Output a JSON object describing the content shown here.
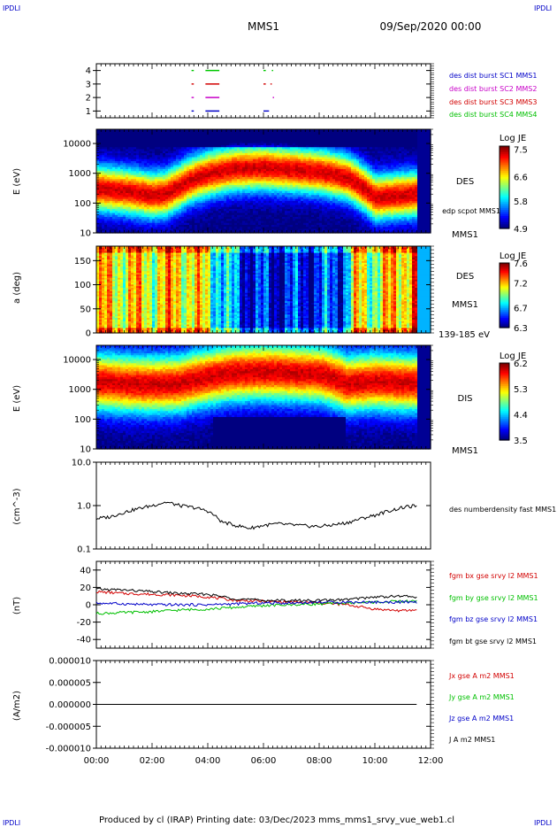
{
  "header": {
    "corner_tl": "IPDLI",
    "corner_tr": "IPDLI",
    "corner_bl": "IPDLI",
    "corner_br": "IPDLI",
    "title": "MMS1",
    "date": "09/Sep/2020 00:00"
  },
  "footer": {
    "text": "Produced by cl (IRAP)   Printing date: 03/Dec/2023   mms_mms1_srvy_vue_web1.cl"
  },
  "colors": {
    "mms1": "#0000c8",
    "mms2": "#c800c8",
    "mms3": "#d20000",
    "mms4": "#00c800",
    "bx": "#d20000",
    "by": "#00c000",
    "bz": "#0000c8",
    "bt": "#000000"
  },
  "chart_data": [
    {
      "type": "line",
      "id": "burst",
      "xlim": [
        "00:00",
        "12:00"
      ],
      "ylim": [
        0.5,
        4.5
      ],
      "yticks": [
        "1",
        "2",
        "3",
        "4"
      ],
      "series": [
        {
          "name": "des dist burst SC1 MMS1",
          "y": 1,
          "intervals": [
            [
              "03:25",
              "03:30"
            ],
            [
              "03:55",
              "04:25"
            ],
            [
              "06:00",
              "06:12"
            ]
          ]
        },
        {
          "name": "des dist burst SC2 MMS2",
          "y": 2,
          "intervals": [
            [
              "03:25",
              "03:30"
            ],
            [
              "03:55",
              "04:25"
            ],
            [
              "06:20",
              "06:22"
            ]
          ]
        },
        {
          "name": "des dist burst SC3 MMS3",
          "y": 3,
          "intervals": [
            [
              "03:25",
              "03:30"
            ],
            [
              "03:55",
              "04:25"
            ],
            [
              "06:00",
              "06:05"
            ],
            [
              "06:15",
              "06:18"
            ]
          ]
        },
        {
          "name": "des dist burst SC4 MMS4",
          "y": 4,
          "intervals": [
            [
              "03:25",
              "03:30"
            ],
            [
              "03:55",
              "04:25"
            ],
            [
              "06:00",
              "06:05"
            ],
            [
              "06:18",
              "06:20"
            ]
          ]
        }
      ]
    },
    {
      "type": "heatmap",
      "id": "des_energy",
      "ylabel": "E (eV)",
      "yscale": "log",
      "ylim": [
        10,
        30000
      ],
      "yticks": [
        "10",
        "100",
        "1000",
        "10000"
      ],
      "label": "DES",
      "sublabel": "MMS1",
      "overlay_label": "edp scpot MMS1",
      "colorbar": {
        "title": "Log JE",
        "min": 4.9,
        "max": 7.6,
        "ticks": [
          "7.5",
          "6.6",
          "5.8",
          "4.9"
        ]
      },
      "peak_energy_eV": [
        [
          "00:00",
          300
        ],
        [
          "01:00",
          250
        ],
        [
          "02:00",
          180
        ],
        [
          "02:30",
          200
        ],
        [
          "03:00",
          350
        ],
        [
          "04:00",
          900
        ],
        [
          "05:00",
          1400
        ],
        [
          "06:00",
          1500
        ],
        [
          "07:00",
          1300
        ],
        [
          "08:00",
          1100
        ],
        [
          "09:00",
          700
        ],
        [
          "09:30",
          350
        ],
        [
          "10:00",
          150
        ],
        [
          "11:00",
          180
        ],
        [
          "11:30",
          200
        ]
      ]
    },
    {
      "type": "heatmap",
      "id": "des_pitch",
      "ylabel": "a (deg)",
      "ylim": [
        0,
        180
      ],
      "yticks": [
        "0",
        "50",
        "100",
        "150"
      ],
      "label": "DES",
      "sublabel": "MMS1",
      "energy_band": "139-185 eV",
      "colorbar": {
        "title": "Log JE",
        "min": 6.3,
        "max": 7.6,
        "ticks": [
          "7.6",
          "7.2",
          "6.7",
          "6.3"
        ]
      },
      "flux_level": [
        [
          "00:00",
          0.62
        ],
        [
          "01:00",
          0.65
        ],
        [
          "02:00",
          0.6
        ],
        [
          "03:00",
          0.68
        ],
        [
          "04:00",
          0.55
        ],
        [
          "04:40",
          0.3
        ],
        [
          "05:30",
          0.12
        ],
        [
          "06:30",
          0.1
        ],
        [
          "08:00",
          0.15
        ],
        [
          "08:50",
          0.2
        ],
        [
          "09:20",
          0.6
        ],
        [
          "10:00",
          0.55
        ],
        [
          "11:00",
          0.7
        ],
        [
          "11:30",
          0.8
        ]
      ]
    },
    {
      "type": "heatmap",
      "id": "dis_energy",
      "ylabel": "E (eV)",
      "yscale": "log",
      "ylim": [
        10,
        30000
      ],
      "yticks": [
        "10",
        "100",
        "1000",
        "10000"
      ],
      "label": "DIS",
      "sublabel": "MMS1",
      "colorbar": {
        "title": "Log JE",
        "min": 3.5,
        "max": 6.2,
        "ticks": [
          "6.2",
          "5.3",
          "4.4",
          "3.5"
        ]
      },
      "peak_energy_eV": [
        [
          "00:00",
          1800
        ],
        [
          "01:00",
          1500
        ],
        [
          "02:00",
          1400
        ],
        [
          "03:00",
          1500
        ],
        [
          "04:00",
          2500
        ],
        [
          "05:00",
          3500
        ],
        [
          "06:00",
          3800
        ],
        [
          "07:00",
          3500
        ],
        [
          "08:00",
          3200
        ],
        [
          "09:00",
          1500
        ],
        [
          "10:00",
          1800
        ],
        [
          "11:00",
          1600
        ],
        [
          "11:30",
          1600
        ]
      ]
    },
    {
      "type": "line",
      "id": "density",
      "ylabel": "(cm^-3)",
      "yscale": "log",
      "ylim": [
        0.1,
        10
      ],
      "yticks": [
        "0.1",
        "1.0",
        "10.0"
      ],
      "series": [
        {
          "name": "des numberdensity fast MMS1",
          "x": [
            "00:00",
            "00:30",
            "01:00",
            "01:30",
            "02:00",
            "02:30",
            "03:00",
            "03:30",
            "04:00",
            "04:30",
            "05:00",
            "05:30",
            "06:00",
            "06:30",
            "07:00",
            "07:30",
            "08:00",
            "08:30",
            "09:00",
            "09:30",
            "10:00",
            "10:30",
            "11:00",
            "11:30"
          ],
          "y": [
            0.5,
            0.55,
            0.7,
            0.85,
            1.0,
            1.2,
            1.0,
            0.9,
            0.75,
            0.42,
            0.35,
            0.3,
            0.35,
            0.38,
            0.36,
            0.34,
            0.33,
            0.36,
            0.4,
            0.5,
            0.6,
            0.75,
            0.9,
            1.0
          ]
        }
      ]
    },
    {
      "type": "line",
      "id": "magnetic",
      "ylabel": "(nT)",
      "ylim": [
        -50,
        50
      ],
      "yticks": [
        "-40",
        "-20",
        "0",
        "20",
        "40"
      ],
      "series": [
        {
          "name": "fgm bx gse srvy l2 MMS1",
          "x": [
            "00:00",
            "01:00",
            "02:00",
            "03:00",
            "04:00",
            "05:00",
            "06:00",
            "07:00",
            "08:00",
            "09:00",
            "10:00",
            "11:00",
            "11:30"
          ],
          "y": [
            15,
            13,
            12,
            11,
            9,
            5,
            4,
            3,
            2,
            0,
            -5,
            -7,
            -6
          ]
        },
        {
          "name": "fgm by gse srvy l2 MMS1",
          "x": [
            "00:00",
            "01:00",
            "02:00",
            "03:00",
            "04:00",
            "05:00",
            "06:00",
            "07:00",
            "08:00",
            "09:00",
            "10:00",
            "11:00",
            "11:30"
          ],
          "y": [
            -10,
            -9,
            -8,
            -6,
            -5,
            -3,
            -1,
            0,
            1,
            2,
            3,
            4,
            4
          ]
        },
        {
          "name": "fgm bz gse srvy l2 MMS1",
          "x": [
            "00:00",
            "01:00",
            "02:00",
            "03:00",
            "04:00",
            "05:00",
            "06:00",
            "07:00",
            "08:00",
            "09:00",
            "10:00",
            "11:00",
            "11:30"
          ],
          "y": [
            2,
            1,
            0,
            0,
            0,
            1,
            2,
            2,
            3,
            3,
            3,
            3,
            3
          ]
        },
        {
          "name": "fgm bt gse srvy l2 MMS1",
          "x": [
            "00:00",
            "01:00",
            "02:00",
            "03:00",
            "04:00",
            "05:00",
            "06:00",
            "07:00",
            "08:00",
            "09:00",
            "10:00",
            "11:00",
            "11:30"
          ],
          "y": [
            18,
            17,
            15,
            13,
            12,
            7,
            5,
            5,
            5,
            6,
            9,
            10,
            9
          ]
        }
      ]
    },
    {
      "type": "line",
      "id": "current",
      "ylabel": "(A/m2)",
      "ylim": [
        -1e-05,
        1e-05
      ],
      "yticks": [
        "-0.000010",
        "-0.000005",
        "0.000000",
        "0.000005",
        "0.000010"
      ],
      "series": [
        {
          "name": "Jx gse A m2 MMS1",
          "x": [
            "00:00",
            "12:00"
          ],
          "y": [
            0,
            0
          ]
        },
        {
          "name": "Jy gse A m2 MMS1",
          "x": [
            "00:00",
            "12:00"
          ],
          "y": [
            0,
            0
          ]
        },
        {
          "name": "Jz gse A m2 MMS1",
          "x": [
            "00:00",
            "12:00"
          ],
          "y": [
            0,
            0
          ]
        },
        {
          "name": "J A m2 MMS1",
          "x": [
            "00:00",
            "12:00"
          ],
          "y": [
            0,
            0
          ]
        }
      ]
    }
  ],
  "xaxis": {
    "ticks": [
      "00:00",
      "02:00",
      "04:00",
      "06:00",
      "08:00",
      "10:00",
      "12:00"
    ]
  }
}
